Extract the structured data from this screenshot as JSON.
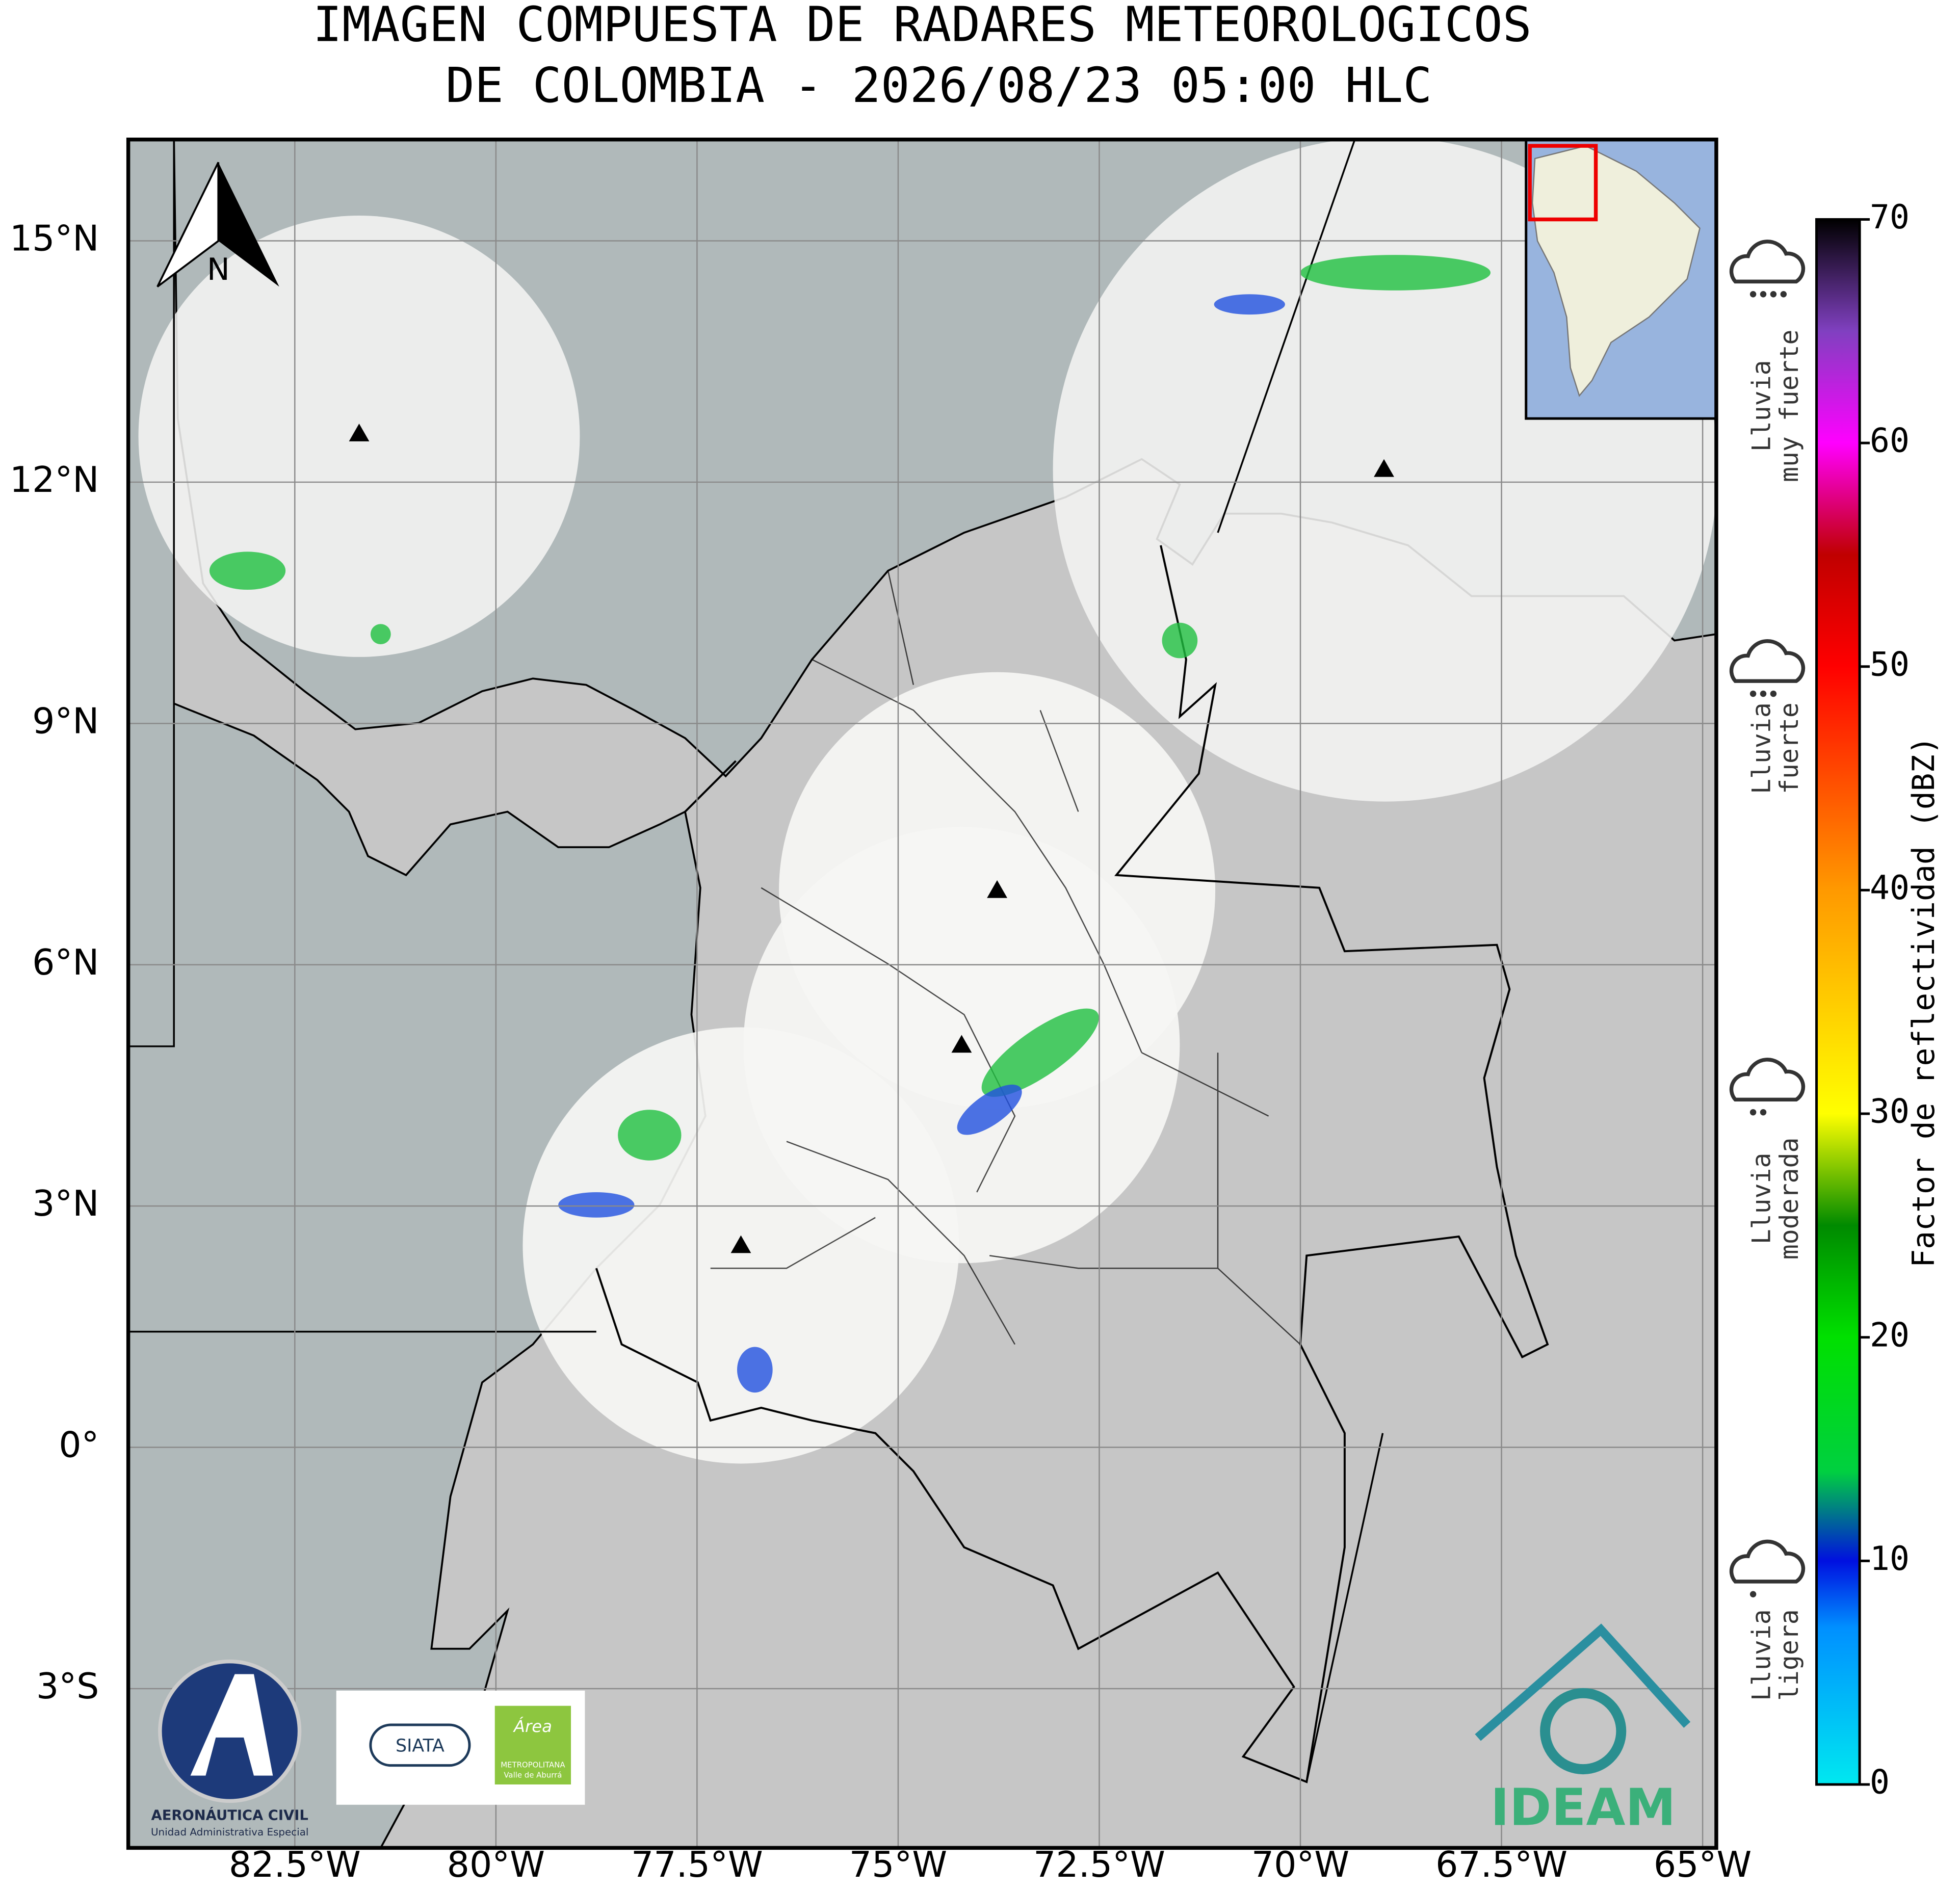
{
  "title": [
    "IMAGEN COMPUESTA DE RADARES METEOROLOGICOS",
    "DE COLOMBIA - 2026/08/23 05:00 HLC"
  ],
  "map": {
    "lon_range": [
      -84.57,
      -64.83
    ],
    "lat_range": [
      -4.98,
      16.26
    ],
    "grid": true,
    "lon_ticks": [
      {
        "value": -82.5,
        "label": "82.5°W"
      },
      {
        "value": -80,
        "label": "80°W"
      },
      {
        "value": -77.5,
        "label": "77.5°W"
      },
      {
        "value": -75,
        "label": "75°W"
      },
      {
        "value": -72.5,
        "label": "72.5°W"
      },
      {
        "value": -70,
        "label": "70°W"
      },
      {
        "value": -67.5,
        "label": "67.5°W"
      },
      {
        "value": -65,
        "label": "65°W"
      }
    ],
    "lat_ticks": [
      {
        "value": 15,
        "label": "15°N"
      },
      {
        "value": 12,
        "label": "12°N"
      },
      {
        "value": 9,
        "label": "9°N"
      },
      {
        "value": 6,
        "label": "6°N"
      },
      {
        "value": 3,
        "label": "3°N"
      },
      {
        "value": 0,
        "label": "0°"
      },
      {
        "value": -3,
        "label": "3°S"
      }
    ]
  },
  "north_label": "N",
  "colorbar": {
    "label": "Factor de reflectividad (dBZ)",
    "lim": [
      0,
      70
    ],
    "ticks": [
      0,
      10,
      20,
      30,
      40,
      50,
      60,
      70
    ],
    "colormap": [
      {
        "value": 0,
        "color": "#00e8f0"
      },
      {
        "value": 7,
        "color": "#0090ff"
      },
      {
        "value": 10,
        "color": "#0010e0"
      },
      {
        "value": 14,
        "color": "#00d040"
      },
      {
        "value": 20,
        "color": "#00e000"
      },
      {
        "value": 25,
        "color": "#008a00"
      },
      {
        "value": 30,
        "color": "#ffff00"
      },
      {
        "value": 40,
        "color": "#ff9900"
      },
      {
        "value": 50,
        "color": "#ff0000"
      },
      {
        "value": 55,
        "color": "#c00000"
      },
      {
        "value": 60,
        "color": "#ff00ff"
      },
      {
        "value": 65,
        "color": "#8040c0"
      },
      {
        "value": 70,
        "color": "#000000"
      }
    ]
  },
  "rain_categories": [
    [
      "Lluvia",
      "muy fuerte"
    ],
    [
      "Lluvia",
      "fuerte"
    ],
    [
      "Lluvia",
      "moderada"
    ],
    [
      "Lluvia",
      "ligera"
    ]
  ],
  "logos": {
    "aerocivil": [
      "AERONÁUTICA CIVIL",
      "Unidad Administrativa Especial"
    ],
    "siata": "SIATA",
    "area": [
      "Área",
      "METROPOLITANA",
      "Valle de Aburrá"
    ],
    "ideam": "IDEAM"
  }
}
